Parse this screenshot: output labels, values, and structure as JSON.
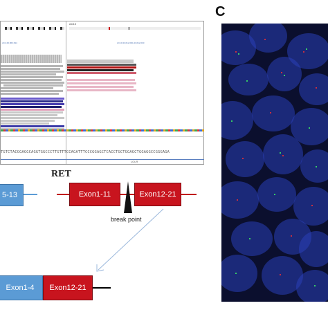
{
  "igv": {
    "chr_label_right": "chr10",
    "locus_left": "chr4:40,863,394",
    "locus_right": "chr10:43,612,000-43,612,030",
    "sequence_text": "TGTCTACGGAGGCAGGTGGCCCTTGTTTCCAGATTTCCCGGAGCTCACCTGCTGGAGCTGGAGGCCGGGAGA",
    "gene_label": "LOLR"
  },
  "fusion": {
    "ret_label": "RET",
    "left_exon_label": "5-13",
    "ret_exon1_label": "Exon1-11",
    "ret_exon2_label": "Exon12-21",
    "break_point_label": "break point",
    "fused_exon1_label": "Exon1-4",
    "fused_exon2_label": "Exon12-21"
  },
  "panel_c": {
    "label": "C"
  },
  "colors": {
    "exon_red": "#c8141e",
    "exon_blue": "#5b9bd5",
    "fish_background": "#0b0f2e",
    "fish_nucleus": "#2a3fb8"
  }
}
